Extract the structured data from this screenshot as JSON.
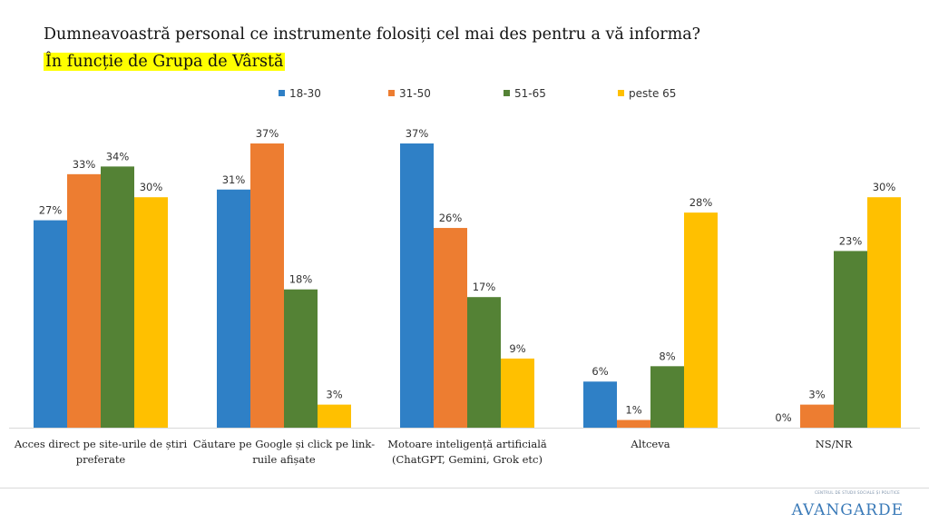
{
  "header": {
    "title": "Dumneavoastră personal ce instrumente folosiți cel mai des pentru a vă informa?",
    "subtitle": "În funcție de Grupa de Vârstă"
  },
  "chart_data": {
    "type": "bar",
    "title": "Dumneavoastră personal ce instrumente folosiți cel mai des pentru a vă informa?",
    "subtitle": "În funcție de Grupa de Vârstă",
    "categories": [
      [
        "Acces direct pe site-urile de știri",
        "preferate"
      ],
      [
        "Căutare pe Google și click pe link-",
        "ruile afișate"
      ],
      [
        "Motoare inteligență artificială",
        "(ChatGPT, Gemini, Grok etc)"
      ],
      [
        "Altceva"
      ],
      [
        "NS/NR"
      ]
    ],
    "series": [
      {
        "name": "18-30",
        "color": "#2f80c6",
        "values": [
          27,
          31,
          37,
          6,
          0
        ]
      },
      {
        "name": "31-50",
        "color": "#ed7d31",
        "values": [
          33,
          37,
          26,
          1,
          3
        ]
      },
      {
        "name": "51-65",
        "color": "#548235",
        "values": [
          34,
          18,
          17,
          8,
          23
        ]
      },
      {
        "name": "peste 65",
        "color": "#ffc000",
        "values": [
          30,
          3,
          9,
          28,
          30
        ]
      }
    ],
    "value_suffix": "%",
    "ylim": [
      0,
      37
    ],
    "grid": false,
    "legend": "top"
  },
  "logo": {
    "text": "AVANGARDE",
    "tagline": "CENTRUL DE STUDII SOCIALE ȘI POLITICE"
  }
}
